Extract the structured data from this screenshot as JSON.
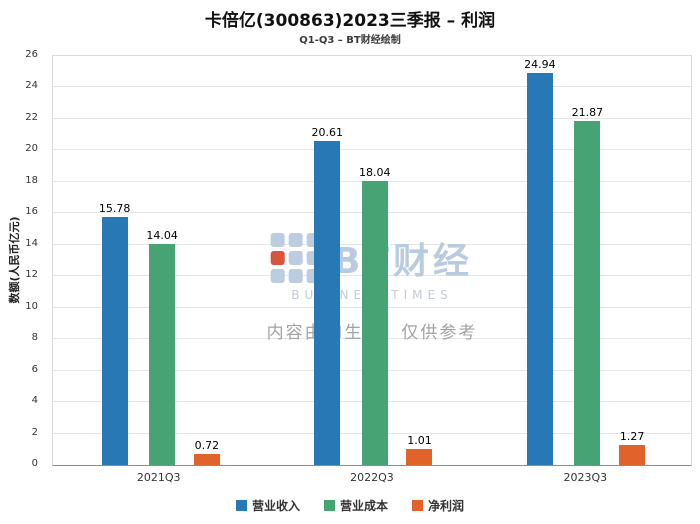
{
  "title": "卡倍亿(300863)2023三季报 – 利润",
  "subtitle": "Q1-Q3 – BT财经绘制",
  "watermark": {
    "logo_text": "BT财经",
    "logo_sub": "BUSINESSTIMES",
    "disclaimer": "内容由AI生成，仅供参考"
  },
  "chart_data": {
    "type": "bar",
    "categories": [
      "2021Q3",
      "2022Q3",
      "2023Q3"
    ],
    "series": [
      {
        "name": "营业收入",
        "color": "#2878b5",
        "values": [
          15.78,
          20.61,
          24.94
        ]
      },
      {
        "name": "营业成本",
        "color": "#47a373",
        "values": [
          14.04,
          18.04,
          21.87
        ]
      },
      {
        "name": "净利润",
        "color": "#e2622b",
        "values": [
          0.72,
          1.01,
          1.27
        ]
      }
    ],
    "title": "卡倍亿(300863)2023三季报 – 利润",
    "xlabel": "",
    "ylabel": "数额(人民币亿元)",
    "ylim": [
      0,
      26
    ],
    "ytick_step": 2,
    "value_label_decimals": 2,
    "grid": true,
    "legend_position": "bottom"
  }
}
